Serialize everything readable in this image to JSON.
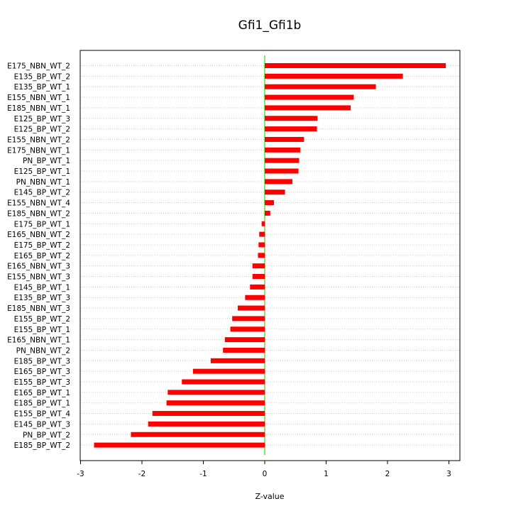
{
  "chart_data": {
    "type": "bar",
    "orientation": "horizontal",
    "title": "Gfi1_Gfi1b",
    "xlabel": "Z-value",
    "ylabel": "",
    "xlim": [
      -3,
      3.2
    ],
    "xticks": [
      "-3",
      "-2",
      "-1",
      "0",
      "1",
      "2",
      "3"
    ],
    "grid": true,
    "legend": "none",
    "bar_color": "#ff0000",
    "zero_line_color": "#66dd44",
    "grid_color": "#cccccc",
    "categories": [
      "E175_NBN_WT_2",
      "E135_BP_WT_2",
      "E135_BP_WT_1",
      "E155_NBN_WT_1",
      "E185_NBN_WT_1",
      "E125_BP_WT_3",
      "E125_BP_WT_2",
      "E155_NBN_WT_2",
      "E175_NBN_WT_1",
      "PN_BP_WT_1",
      "E125_BP_WT_1",
      "PN_NBN_WT_1",
      "E145_BP_WT_2",
      "E155_NBN_WT_4",
      "E185_NBN_WT_2",
      "E175_BP_WT_1",
      "E165_NBN_WT_2",
      "E175_BP_WT_2",
      "E165_BP_WT_2",
      "E165_NBN_WT_3",
      "E155_NBN_WT_3",
      "E145_BP_WT_1",
      "E135_BP_WT_3",
      "E185_NBN_WT_3",
      "E155_BP_WT_2",
      "E155_BP_WT_1",
      "E165_NBN_WT_1",
      "PN_NBN_WT_2",
      "E185_BP_WT_3",
      "E165_BP_WT_3",
      "E155_BP_WT_3",
      "E165_BP_WT_1",
      "E185_BP_WT_1",
      "E155_BP_WT_4",
      "E145_BP_WT_3",
      "PN_BP_WT_2",
      "E185_BP_WT_2"
    ],
    "values": [
      2.95,
      2.25,
      1.81,
      1.45,
      1.4,
      0.86,
      0.85,
      0.64,
      0.58,
      0.56,
      0.55,
      0.45,
      0.33,
      0.15,
      0.09,
      -0.05,
      -0.09,
      -0.1,
      -0.11,
      -0.2,
      -0.2,
      -0.24,
      -0.32,
      -0.44,
      -0.53,
      -0.56,
      -0.65,
      -0.68,
      -0.88,
      -1.17,
      -1.35,
      -1.58,
      -1.6,
      -1.83,
      -1.9,
      -2.18,
      -2.78
    ]
  }
}
